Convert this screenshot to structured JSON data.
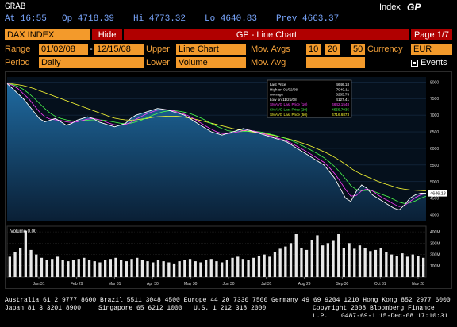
{
  "header": {
    "grab_label": "GRAB",
    "time_label": "At 16:55",
    "op_label": "Op 4718.39",
    "hi_label": "Hi 4773.32",
    "lo_label": "Lo 4640.83",
    "prev_label": "Prev 4663.37",
    "index_label": "Index",
    "gp_label": "GP"
  },
  "toolbar": {
    "ticker_value": "DAX INDEX",
    "hide_label": "Hide",
    "title": "GP - Line Chart",
    "page_label": "Page 1/7"
  },
  "controls": {
    "range_label": "Range",
    "range_start": "01/02/08",
    "range_sep": "-",
    "range_end": "12/15/08",
    "upper_label": "Upper",
    "upper_value": "Line Chart",
    "mov_avgs_label": "Mov. Avgs",
    "mov_avg_1": "10",
    "mov_avg_2": "20",
    "mov_avg_3": "50",
    "currency_label": "Currency",
    "currency_value": "EUR",
    "period_label": "Period",
    "period_value": "Daily",
    "lower_label": "Lower",
    "lower_value": "Volume",
    "lower_mov_avg_label": "Mov. Avg",
    "lower_mov_avg_value": "",
    "events_label": "Events",
    "events_checked": true
  },
  "legend": {
    "rows": [
      {
        "label": "Last Price",
        "value": "4646.18"
      },
      {
        "label": "High on 01/02/08",
        "value": "7949.11"
      },
      {
        "label": "Average",
        "value": "6285.73"
      },
      {
        "label": "Low on 11/21/08",
        "value": "4127.41"
      },
      {
        "label": "SMAVG Last Price (10)",
        "value": "4642.1548"
      },
      {
        "label": "SMAVG Last Price (20)",
        "value": "4555.7035"
      },
      {
        "label": "SMAVG Last Price (50)",
        "value": "4716.6873"
      }
    ],
    "colors": [
      "#ffffff",
      "#ffffff",
      "#ffffff",
      "#ffffff",
      "#ff3cff",
      "#4cff4c",
      "#ffff33"
    ]
  },
  "volume_label": "Volume 0.00",
  "last_price_tag": "4646.18",
  "footer": {
    "line1": "Australia 61 2 9777 8600 Brazil 5511 3048 4500 Europe 44 20 7330 7500 Germany 49 69 9204 1210 Hong Kong 852 2977 6000",
    "line2_left": "Japan 81 3 3201 8900",
    "line2_mid": "Singapore 65 6212 1000",
    "line2_right": "U.S. 1 212 318 2000",
    "line2_copy": "Copyright 2008 Bloomberg Finance L.P.",
    "line3": "G487-69-1 15-Dec-08 17:10:31"
  },
  "colors": {
    "amber": "#f3a13a",
    "orange_field": "#f39a2b",
    "red_bar": "#b00000",
    "header_blue": "#7aa7ff",
    "price_line": "#ffffff",
    "sma10": "#ff3cff",
    "sma20": "#4cff4c",
    "sma50": "#ffff33",
    "fill_top": "#1f6aa0",
    "fill_bottom": "#0a1f35"
  },
  "chart_data": {
    "type": "line",
    "title": "",
    "x_ticks": [
      "Jan 31",
      "Feb 29",
      "Mar 31",
      "Apr 30",
      "May 30",
      "Jun 30",
      "Jul 31",
      "Aug 29",
      "Sep 30",
      "Oct 31",
      "Nov 28"
    ],
    "y_ticks": [
      8000,
      7500,
      7000,
      6500,
      6000,
      5500,
      5000,
      4500,
      4000
    ],
    "ylim": [
      3800,
      8150
    ],
    "volume_ticks": [
      "400M",
      "300M",
      "200M",
      "100M"
    ],
    "volume_ylim": [
      0,
      450
    ],
    "series": [
      {
        "name": "Last Price",
        "values": [
          7950,
          7800,
          7650,
          7500,
          7300,
          7100,
          6900,
          6800,
          6850,
          6900,
          6800,
          6700,
          6750,
          6850,
          6900,
          6950,
          6900,
          6800,
          6750,
          6700,
          6650,
          6700,
          6750,
          6900,
          7000,
          7050,
          7100,
          7150,
          7200,
          7180,
          7150,
          7100,
          7050,
          7000,
          6900,
          6800,
          6700,
          6600,
          6500,
          6450,
          6400,
          6450,
          6500,
          6550,
          6600,
          6550,
          6500,
          6450,
          6400,
          6350,
          6300,
          6250,
          6200,
          6100,
          6000,
          5900,
          5800,
          5700,
          5600,
          5500,
          5300,
          5100,
          4800,
          4500,
          4400,
          4700,
          4900,
          4800,
          4600,
          4500,
          4400,
          4300,
          4200,
          4150,
          4300,
          4500,
          4600,
          4650,
          4646
        ]
      },
      {
        "name": "SMAVG Last Price (10)",
        "values": [
          7950,
          7900,
          7800,
          7650,
          7500,
          7300,
          7100,
          6950,
          6880,
          6860,
          6840,
          6800,
          6780,
          6800,
          6840,
          6880,
          6900,
          6870,
          6820,
          6760,
          6710,
          6700,
          6720,
          6780,
          6880,
          6960,
          7040,
          7100,
          7150,
          7170,
          7160,
          7130,
          7080,
          7030,
          6960,
          6870,
          6770,
          6670,
          6580,
          6500,
          6450,
          6440,
          6470,
          6500,
          6540,
          6550,
          6520,
          6480,
          6430,
          6380,
          6330,
          6280,
          6230,
          6150,
          6060,
          5970,
          5880,
          5780,
          5680,
          5580,
          5420,
          5240,
          5010,
          4760,
          4560,
          4580,
          4720,
          4780,
          4720,
          4600,
          4500,
          4420,
          4320,
          4250,
          4280,
          4400,
          4520,
          4600,
          4642
        ]
      },
      {
        "name": "SMAVG Last Price (20)",
        "values": [
          7950,
          7920,
          7870,
          7780,
          7660,
          7520,
          7360,
          7200,
          7060,
          6960,
          6900,
          6860,
          6830,
          6820,
          6830,
          6850,
          6860,
          6860,
          6850,
          6820,
          6790,
          6760,
          6740,
          6760,
          6800,
          6850,
          6920,
          6990,
          7050,
          7100,
          7130,
          7140,
          7120,
          7090,
          7050,
          6990,
          6920,
          6840,
          6750,
          6670,
          6600,
          6540,
          6510,
          6500,
          6510,
          6520,
          6520,
          6500,
          6470,
          6430,
          6390,
          6340,
          6290,
          6230,
          6160,
          6080,
          6000,
          5910,
          5820,
          5720,
          5590,
          5450,
          5280,
          5080,
          4880,
          4760,
          4720,
          4740,
          4720,
          4660,
          4600,
          4540,
          4460,
          4380,
          4340,
          4360,
          4420,
          4500,
          4556
        ]
      },
      {
        "name": "SMAVG Last Price (50)",
        "values": [
          7950,
          7940,
          7920,
          7890,
          7850,
          7800,
          7740,
          7680,
          7620,
          7560,
          7500,
          7440,
          7380,
          7320,
          7260,
          7200,
          7140,
          7080,
          7020,
          6960,
          6910,
          6880,
          6860,
          6850,
          6860,
          6880,
          6900,
          6930,
          6950,
          6960,
          6970,
          6970,
          6960,
          6940,
          6910,
          6880,
          6840,
          6800,
          6760,
          6720,
          6680,
          6640,
          6600,
          6570,
          6540,
          6510,
          6490,
          6470,
          6440,
          6410,
          6380,
          6340,
          6300,
          6260,
          6210,
          6160,
          6100,
          6040,
          5970,
          5900,
          5820,
          5730,
          5630,
          5520,
          5400,
          5300,
          5220,
          5150,
          5080,
          5010,
          4950,
          4900,
          4850,
          4800,
          4770,
          4750,
          4740,
          4730,
          4717
        ]
      }
    ],
    "volume": [
      180,
      220,
      260,
      410,
      240,
      200,
      170,
      150,
      160,
      180,
      150,
      140,
      150,
      160,
      170,
      150,
      140,
      130,
      150,
      160,
      170,
      150,
      140,
      160,
      170,
      150,
      140,
      130,
      150,
      140,
      130,
      120,
      140,
      150,
      160,
      140,
      130,
      150,
      160,
      140,
      130,
      150,
      170,
      180,
      160,
      150,
      170,
      190,
      200,
      180,
      220,
      250,
      270,
      300,
      380,
      260,
      240,
      330,
      370,
      280,
      300,
      320,
      380,
      260,
      300,
      250,
      280,
      260,
      230,
      240,
      260,
      220,
      200,
      190,
      210,
      180,
      200,
      190,
      170
    ]
  }
}
